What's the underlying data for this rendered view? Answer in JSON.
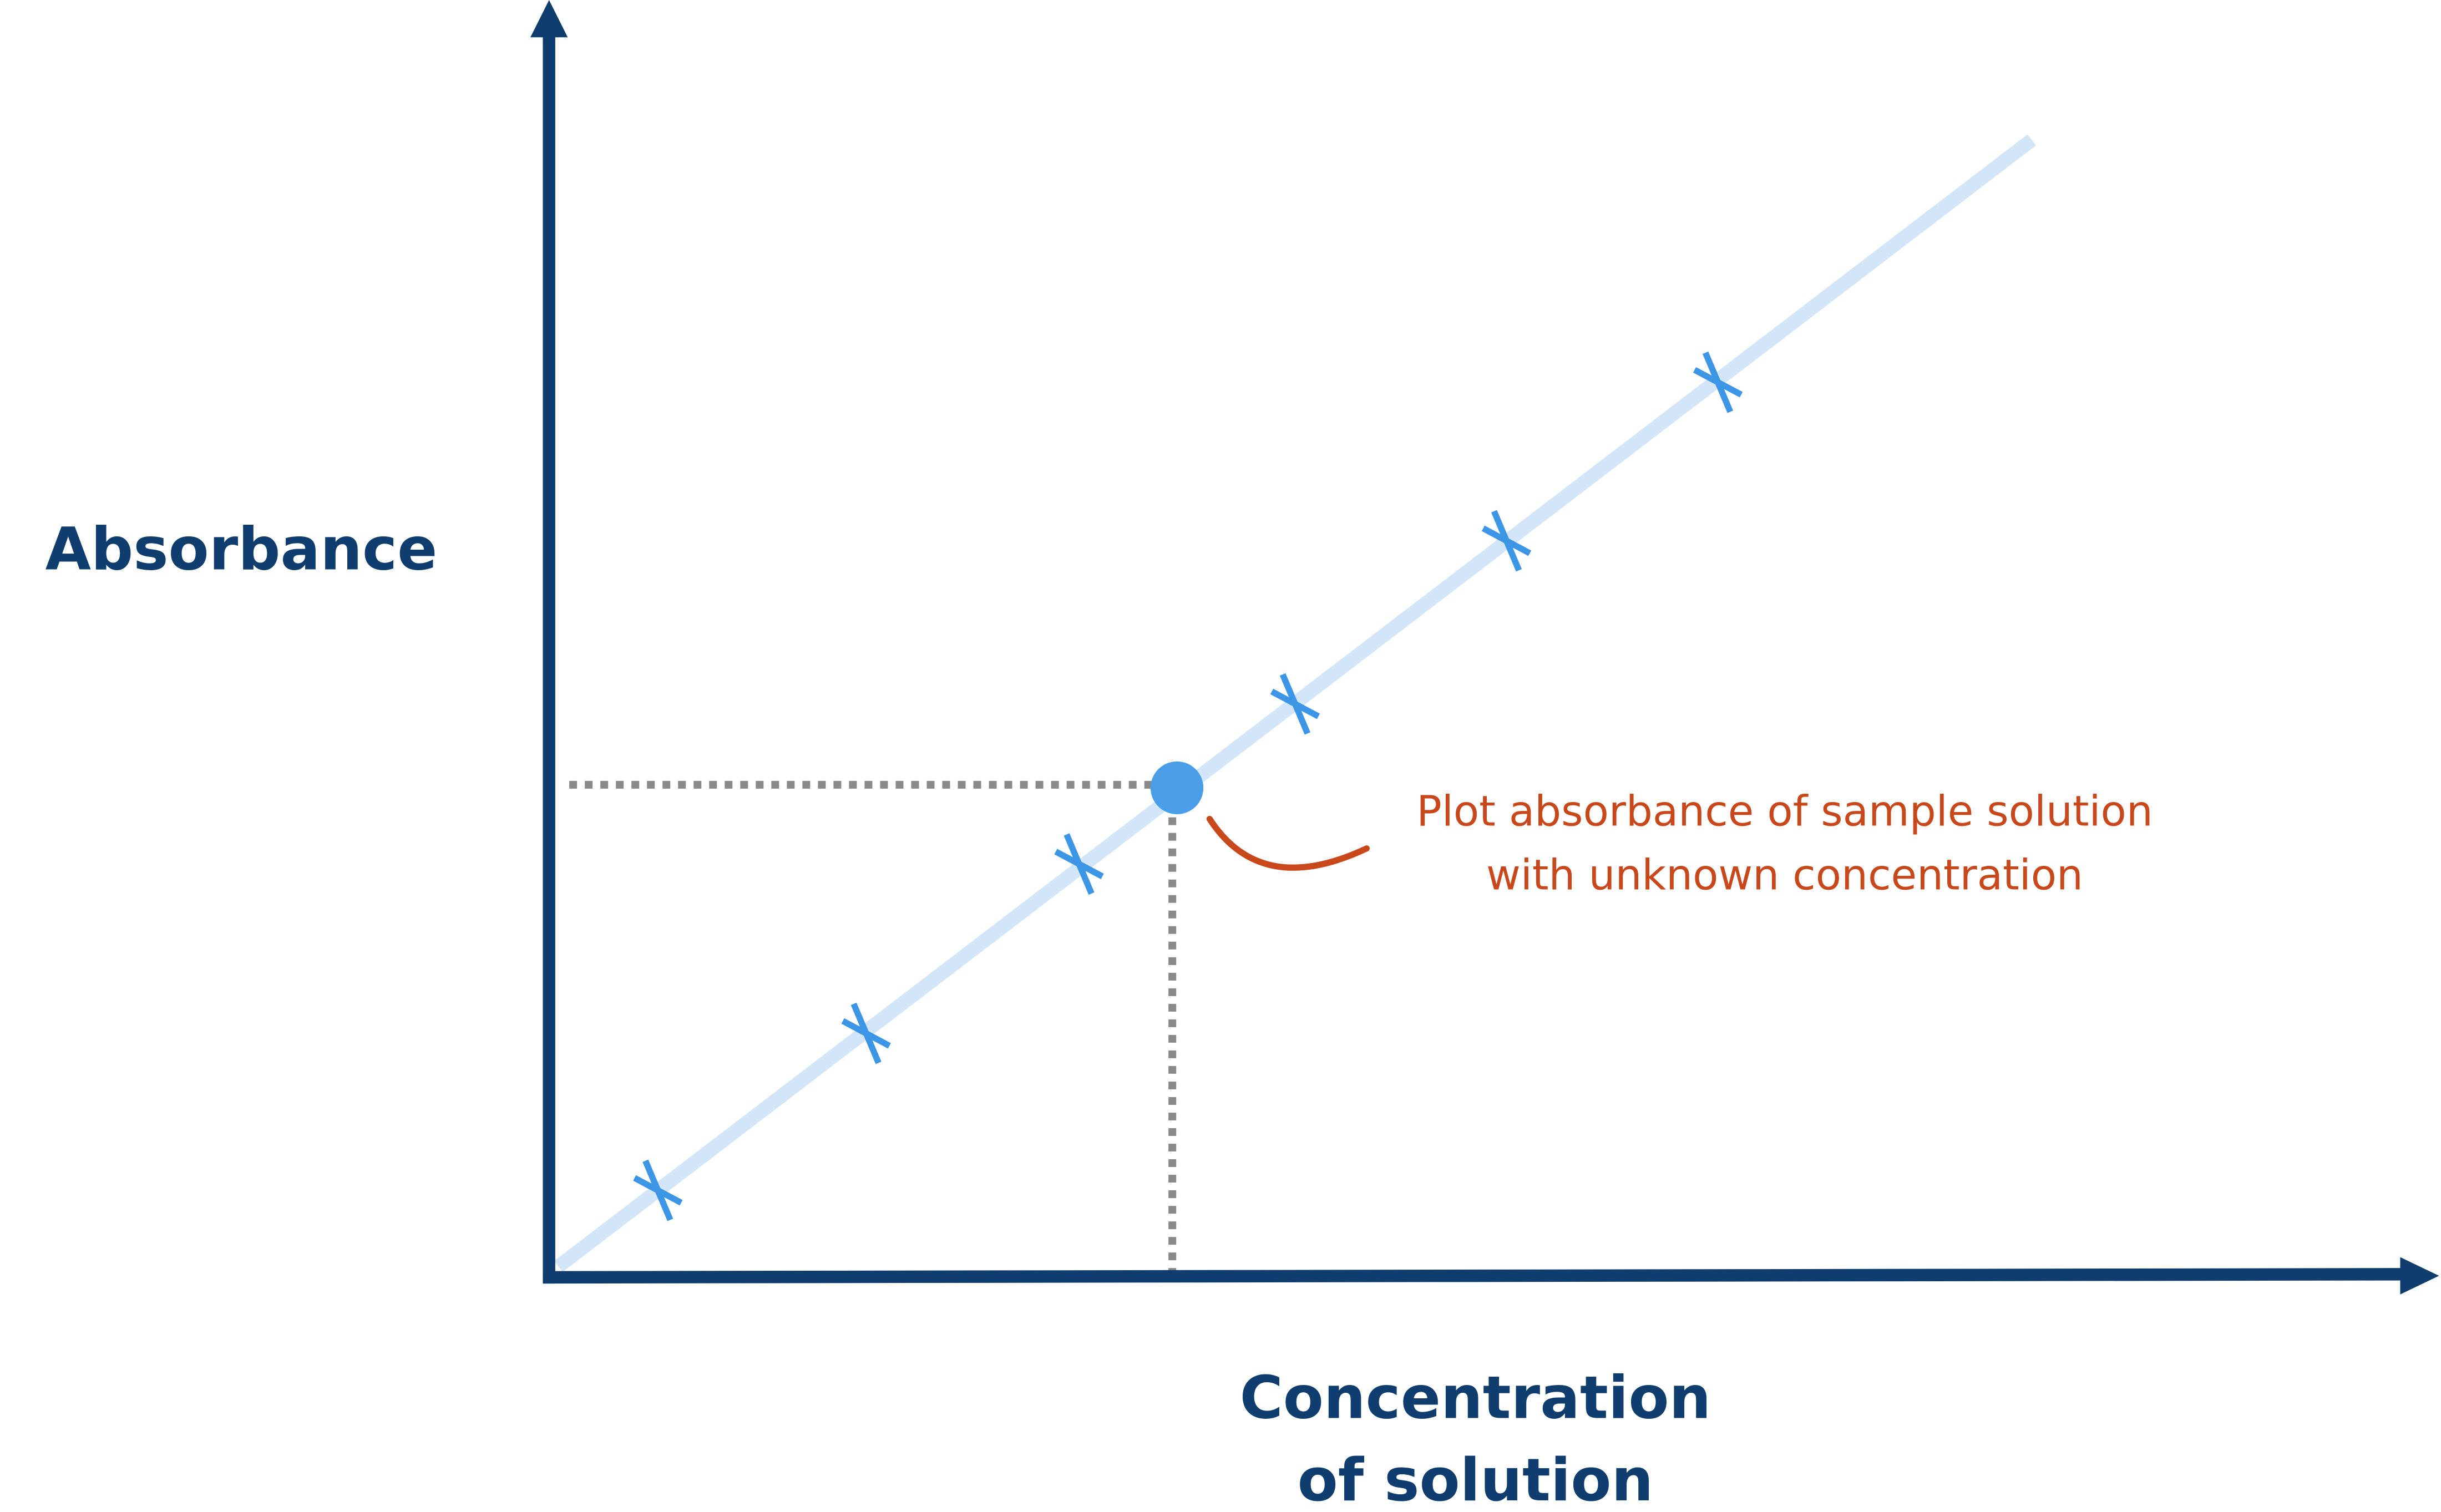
{
  "axis_labels": {
    "y": "Absorbance",
    "x": [
      "Concentration",
      "of solution"
    ]
  },
  "annotation": [
    "Plot absorbance of sample solution",
    "with unknown concentration"
  ]
}
